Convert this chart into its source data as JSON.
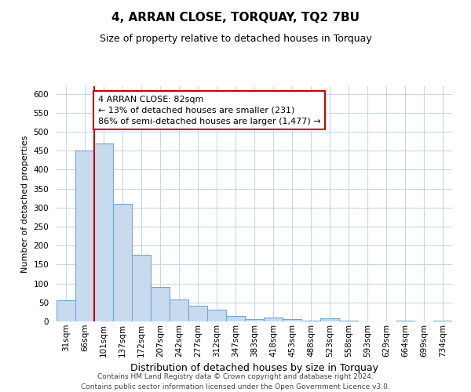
{
  "title": "4, ARRAN CLOSE, TORQUAY, TQ2 7BU",
  "subtitle": "Size of property relative to detached houses in Torquay",
  "xlabel": "Distribution of detached houses by size in Torquay",
  "ylabel": "Number of detached properties",
  "bar_labels": [
    "31sqm",
    "66sqm",
    "101sqm",
    "137sqm",
    "172sqm",
    "207sqm",
    "242sqm",
    "277sqm",
    "312sqm",
    "347sqm",
    "383sqm",
    "418sqm",
    "453sqm",
    "488sqm",
    "523sqm",
    "558sqm",
    "593sqm",
    "629sqm",
    "664sqm",
    "699sqm",
    "734sqm"
  ],
  "bar_values": [
    55,
    450,
    470,
    310,
    175,
    90,
    58,
    42,
    30,
    15,
    7,
    10,
    7,
    3,
    8,
    3,
    1,
    0,
    2,
    0,
    2
  ],
  "bar_color": "#c8daee",
  "bar_edge_color": "#6fa8d4",
  "marker_line_color": "#cc0000",
  "marker_bar_index": 1,
  "annotation_line1": "4 ARRAN CLOSE: 82sqm",
  "annotation_line2": "← 13% of detached houses are smaller (231)",
  "annotation_line3": "86% of semi-detached houses are larger (1,477) →",
  "annotation_box_color": "#ffffff",
  "annotation_box_edge_color": "#cc0000",
  "ylim": [
    0,
    620
  ],
  "yticks": [
    0,
    50,
    100,
    150,
    200,
    250,
    300,
    350,
    400,
    450,
    500,
    550,
    600
  ],
  "footer_line1": "Contains HM Land Registry data © Crown copyright and database right 2024.",
  "footer_line2": "Contains public sector information licensed under the Open Government Licence v3.0.",
  "bg_color": "#ffffff",
  "grid_color": "#c8d8e8",
  "title_fontsize": 11,
  "subtitle_fontsize": 9,
  "ylabel_fontsize": 8,
  "xlabel_fontsize": 9,
  "tick_fontsize": 7.5,
  "footer_fontsize": 6.5
}
